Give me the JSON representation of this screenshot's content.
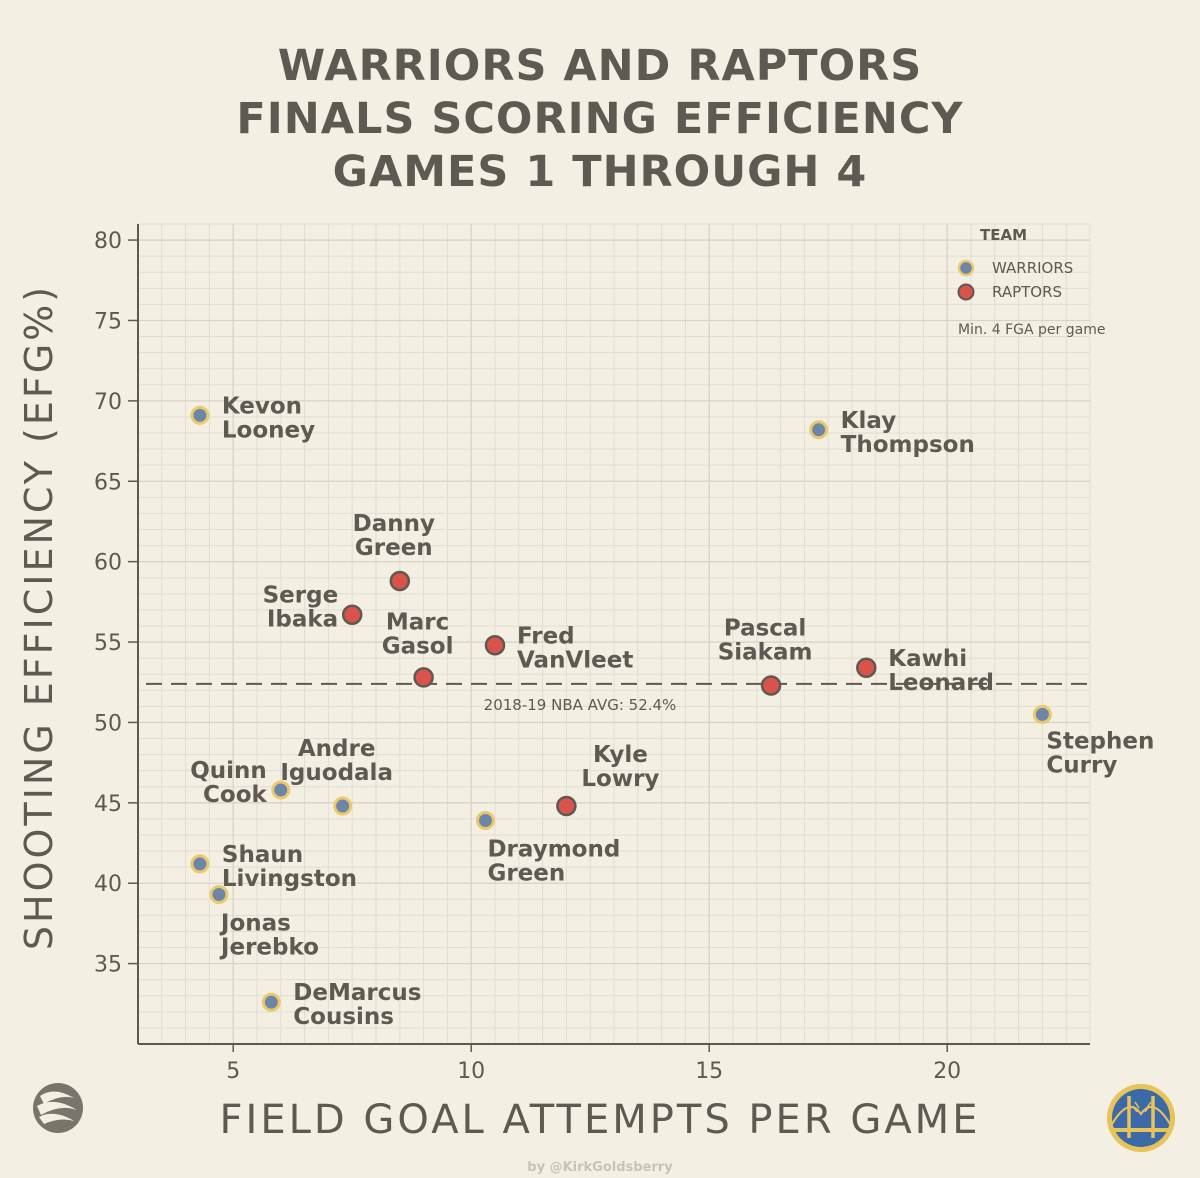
{
  "title_lines": [
    "WARRIORS AND RAPTORS",
    "FINALS SCORING EFFICIENCY",
    "GAMES 1 THROUGH 4"
  ],
  "credit": "by @KirkGoldsberry",
  "colors": {
    "background": "#f3efe3",
    "text": "#5e5a52",
    "warriors": "#6d86a8",
    "warriors_stroke": "#e9c96a",
    "raptors": "#d9534a",
    "raptors_stroke": "#5e5a52",
    "grid": "#e2ddd0"
  },
  "icons": {
    "left_logo": "raptors-claw-logo-icon",
    "right_logo": "warriors-bridge-logo-icon"
  },
  "chart_data": {
    "type": "scatter",
    "title": "WARRIORS AND RAPTORS FINALS SCORING EFFICIENCY GAMES 1 THROUGH 4",
    "xlabel": "FIELD GOAL ATTEMPTS PER GAME",
    "ylabel": "SHOOTING EFFICIENCY (EFG%)",
    "xlim": [
      3,
      23
    ],
    "ylim": [
      30,
      81
    ],
    "xticks": [
      "5",
      "10",
      "15",
      "20"
    ],
    "yticks": [
      "35",
      "40",
      "45",
      "50",
      "55",
      "60",
      "65",
      "70",
      "75",
      "80"
    ],
    "grid": true,
    "legend": {
      "title": "TEAM",
      "placement": "top-right",
      "entries": [
        "WARRIORS",
        "RAPTORS"
      ],
      "note": "Min. 4 FGA per game"
    },
    "reference_line": {
      "y": 52.4,
      "label": "2018-19 NBA AVG: 52.4%"
    },
    "series": [
      {
        "name": "WARRIORS",
        "points": [
          {
            "label": "Kevon\nLooney",
            "x": 4.3,
            "y": 69.1,
            "anchor": "right"
          },
          {
            "label": "Klay\nThompson",
            "x": 17.3,
            "y": 68.2,
            "anchor": "right"
          },
          {
            "label": "Stephen\nCurry",
            "x": 22.0,
            "y": 50.5,
            "anchor": "below-right"
          },
          {
            "label": "Quinn\nCook",
            "x": 6.0,
            "y": 45.8,
            "anchor": "left"
          },
          {
            "label": "Andre\nIguodala",
            "x": 7.3,
            "y": 44.8,
            "anchor": "above"
          },
          {
            "label": "Draymond\nGreen",
            "x": 10.3,
            "y": 43.9,
            "anchor": "below"
          },
          {
            "label": "Shaun\nLivingston",
            "x": 4.3,
            "y": 41.2,
            "anchor": "right"
          },
          {
            "label": "Jonas\nJerebko",
            "x": 4.7,
            "y": 39.3,
            "anchor": "below"
          },
          {
            "label": "DeMarcus\nCousins",
            "x": 5.8,
            "y": 32.6,
            "anchor": "right"
          }
        ]
      },
      {
        "name": "RAPTORS",
        "points": [
          {
            "label": "Danny\nGreen",
            "x": 8.5,
            "y": 58.8,
            "anchor": "above"
          },
          {
            "label": "Serge\nIbaka",
            "x": 7.5,
            "y": 56.7,
            "anchor": "left"
          },
          {
            "label": "Fred\nVanVleet",
            "x": 10.5,
            "y": 54.8,
            "anchor": "right"
          },
          {
            "label": "Marc\nGasol",
            "x": 9.0,
            "y": 52.8,
            "anchor": "above-left"
          },
          {
            "label": "Pascal\nSiakam",
            "x": 16.3,
            "y": 52.3,
            "anchor": "above"
          },
          {
            "label": "Kawhi\nLeonard",
            "x": 18.3,
            "y": 53.4,
            "anchor": "right"
          },
          {
            "label": "Kyle\nLowry",
            "x": 12.0,
            "y": 44.8,
            "anchor": "above-right"
          }
        ]
      }
    ]
  }
}
